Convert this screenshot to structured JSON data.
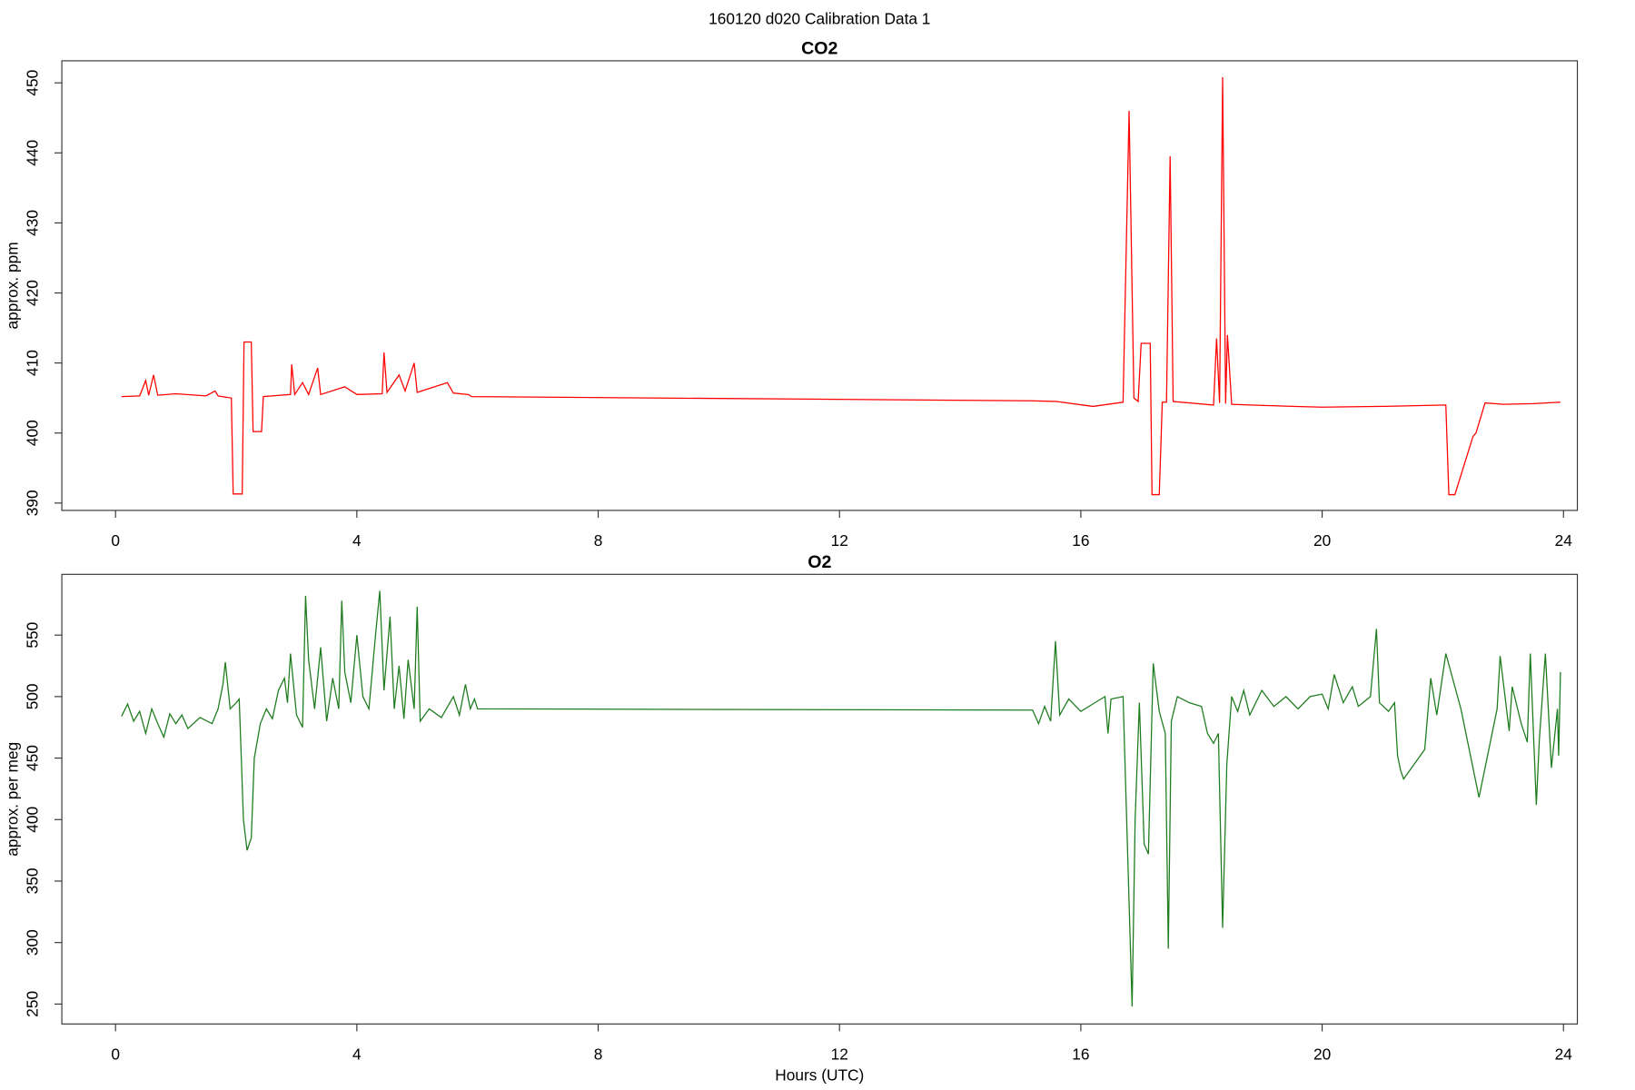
{
  "title": "160120   d020   Calibration Data 1",
  "chart_data": [
    {
      "type": "line",
      "title": "CO2",
      "ylabel": "approx. ppm",
      "color": "#ff0000",
      "xlim": [
        -0.89,
        24.23
      ],
      "xticks": [
        0,
        4,
        8,
        12,
        16,
        20,
        24
      ],
      "ylim": [
        388.95,
        453.15
      ],
      "yticks": [
        390,
        400,
        410,
        420,
        430,
        440,
        450
      ],
      "x": [
        0.1,
        0.4,
        0.5,
        0.55,
        0.63,
        0.7,
        1.0,
        1.5,
        1.65,
        1.7,
        1.92,
        1.95,
        2.1,
        2.13,
        2.25,
        2.28,
        2.42,
        2.45,
        2.9,
        2.92,
        2.97,
        3.1,
        3.2,
        3.35,
        3.4,
        3.8,
        4.0,
        4.42,
        4.45,
        4.5,
        4.7,
        4.8,
        4.95,
        5.0,
        5.5,
        5.6,
        5.85,
        5.9,
        15.2,
        15.6,
        16.2,
        16.7,
        16.8,
        16.88,
        16.95,
        17.0,
        17.15,
        17.18,
        17.3,
        17.35,
        17.42,
        17.48,
        17.53,
        18.2,
        18.25,
        18.3,
        18.35,
        18.4,
        18.43,
        18.5,
        19.5,
        20.0,
        21.0,
        22.05,
        22.1,
        22.2,
        22.5,
        22.55,
        22.7,
        23.0,
        23.5,
        23.95
      ],
      "values": [
        405.2,
        405.3,
        407.5,
        405.4,
        408.3,
        405.4,
        405.6,
        405.3,
        406,
        405.3,
        405,
        391.3,
        391.3,
        413,
        413,
        400.2,
        400.2,
        405.2,
        405.5,
        409.8,
        405.5,
        407.2,
        405.5,
        409.3,
        405.5,
        406.6,
        405.5,
        405.6,
        411.5,
        405.8,
        408.3,
        406,
        410,
        405.8,
        407.2,
        405.7,
        405.5,
        405.2,
        404.6,
        404.5,
        403.8,
        404.4,
        446,
        405,
        404.5,
        412.8,
        412.8,
        391.2,
        391.2,
        404.4,
        404.4,
        439.5,
        404.5,
        404,
        413.5,
        404.3,
        450.8,
        404.2,
        414,
        404.1,
        403.8,
        403.7,
        403.8,
        404,
        391.2,
        391.2,
        399.5,
        400,
        404.3,
        404.1,
        404.2,
        404.4
      ]
    },
    {
      "type": "line",
      "title": "O2",
      "ylabel": "approx. per meg",
      "xlabel": "Hours (UTC)",
      "color": "#1e7b1e",
      "xlim": [
        -0.89,
        24.23
      ],
      "xticks": [
        0,
        4,
        8,
        12,
        16,
        20,
        24
      ],
      "ylim": [
        233.8,
        599.4
      ],
      "yticks": [
        250,
        300,
        350,
        400,
        450,
        500,
        550
      ],
      "x": [
        0.1,
        0.2,
        0.3,
        0.4,
        0.5,
        0.6,
        0.7,
        0.8,
        0.9,
        1.0,
        1.1,
        1.2,
        1.4,
        1.6,
        1.7,
        1.78,
        1.82,
        1.9,
        2.0,
        2.05,
        2.12,
        2.18,
        2.25,
        2.3,
        2.4,
        2.5,
        2.6,
        2.7,
        2.8,
        2.85,
        2.9,
        3.0,
        3.1,
        3.15,
        3.2,
        3.3,
        3.4,
        3.5,
        3.6,
        3.7,
        3.75,
        3.8,
        3.9,
        4.0,
        4.1,
        4.2,
        4.3,
        4.38,
        4.45,
        4.55,
        4.62,
        4.7,
        4.78,
        4.85,
        4.95,
        5.0,
        5.05,
        5.2,
        5.4,
        5.6,
        5.7,
        5.8,
        5.88,
        5.95,
        6.0,
        15.2,
        15.3,
        15.4,
        15.5,
        15.58,
        15.65,
        15.8,
        16.0,
        16.2,
        16.4,
        16.45,
        16.5,
        16.7,
        16.85,
        16.9,
        16.97,
        17.05,
        17.12,
        17.2,
        17.3,
        17.4,
        17.45,
        17.5,
        17.6,
        17.8,
        18.0,
        18.1,
        18.2,
        18.28,
        18.35,
        18.42,
        18.5,
        18.6,
        18.7,
        18.8,
        19.0,
        19.2,
        19.4,
        19.6,
        19.8,
        20.0,
        20.1,
        20.2,
        20.35,
        20.5,
        20.6,
        20.8,
        20.9,
        20.95,
        21.1,
        21.2,
        21.25,
        21.3,
        21.35,
        21.7,
        21.8,
        21.9,
        22.05,
        22.3,
        22.6,
        22.9,
        22.95,
        23.1,
        23.15,
        23.3,
        23.4,
        23.45,
        23.55,
        23.6,
        23.7,
        23.8,
        23.9,
        23.92,
        23.95
      ],
      "values": [
        484,
        494,
        480,
        488,
        470,
        490,
        478,
        467,
        486,
        478,
        485,
        474,
        483,
        478,
        490,
        510,
        528,
        490,
        495,
        498,
        400,
        375,
        385,
        450,
        478,
        490,
        482,
        505,
        515,
        495,
        535,
        485,
        475,
        582,
        530,
        490,
        540,
        480,
        515,
        490,
        578,
        520,
        495,
        550,
        500,
        490,
        545,
        586,
        505,
        565,
        490,
        525,
        482,
        530,
        490,
        573,
        480,
        490,
        483,
        500,
        485,
        510,
        490,
        498,
        490,
        489,
        478,
        492,
        480,
        545,
        485,
        498,
        488,
        494,
        500,
        470,
        498,
        500,
        248,
        400,
        495,
        380,
        372,
        527,
        488,
        470,
        295,
        480,
        500,
        495,
        492,
        470,
        462,
        470,
        312,
        445,
        500,
        488,
        505,
        485,
        505,
        492,
        500,
        490,
        500,
        502,
        490,
        518,
        495,
        508,
        492,
        500,
        555,
        495,
        488,
        495,
        452,
        440,
        433,
        457,
        515,
        485,
        535,
        490,
        418,
        490,
        533,
        472,
        508,
        478,
        463,
        535,
        412,
        465,
        535,
        442,
        490,
        452,
        520
      ]
    }
  ]
}
